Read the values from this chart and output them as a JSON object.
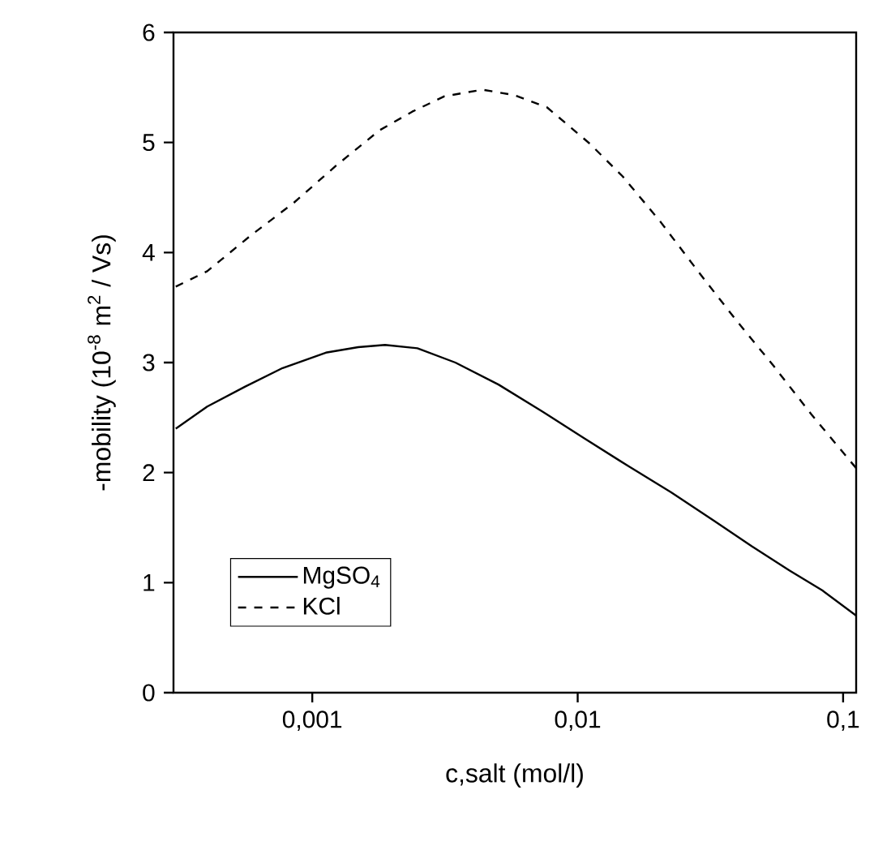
{
  "chart_data": {
    "type": "line",
    "xlabel": "c,salt (mol/l)",
    "ylabel": "-mobility (10$^{-8}$ m$^{2}$ / Vs)",
    "log": "x",
    "legend": "bottom left",
    "grid": false,
    "xlim": [
      0.0003,
      0.112
    ],
    "ylim": [
      0,
      6
    ],
    "xticks": [
      {
        "value": 0.001,
        "label": "0,001"
      },
      {
        "value": 0.01,
        "label": "0,01"
      },
      {
        "value": 0.1,
        "label": "0,1"
      }
    ],
    "yticks": [
      0,
      1,
      2,
      3,
      4,
      5,
      6
    ],
    "series": [
      {
        "name": "MgSO$_{4}$",
        "color": "#000000",
        "line_style": "solid",
        "x": [
          0.000306,
          0.000402,
          0.000557,
          0.000773,
          0.001125,
          0.00149,
          0.00188,
          0.00249,
          0.00346,
          0.00503,
          0.00731,
          0.0106,
          0.0155,
          0.0225,
          0.0327,
          0.0453,
          0.0629,
          0.0834,
          0.112
        ],
        "values": [
          2.4,
          2.6,
          2.78,
          2.95,
          3.09,
          3.14,
          3.16,
          3.13,
          3.0,
          2.8,
          2.56,
          2.31,
          2.06,
          1.82,
          1.56,
          1.33,
          1.11,
          0.93,
          0.7
        ]
      },
      {
        "name": "KCl",
        "color": "#000000",
        "line_style": "dashed",
        "x": [
          0.000306,
          0.000402,
          0.000583,
          0.00085,
          0.00123,
          0.00179,
          0.00238,
          0.00315,
          0.00437,
          0.00578,
          0.00766,
          0.0111,
          0.0148,
          0.0205,
          0.0284,
          0.0394,
          0.0547,
          0.0759,
          0.112
        ],
        "values": [
          3.69,
          3.83,
          4.15,
          4.45,
          4.79,
          5.11,
          5.28,
          5.42,
          5.48,
          5.43,
          5.32,
          4.99,
          4.69,
          4.28,
          3.83,
          3.39,
          2.97,
          2.53,
          2.04
        ]
      }
    ]
  }
}
